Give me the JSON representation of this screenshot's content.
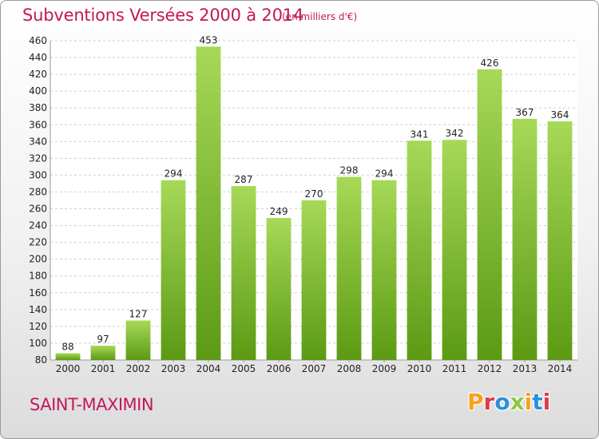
{
  "header": {
    "title": "Subventions Versées 2000 à 2014",
    "subtitle": "(en milliers d'€)"
  },
  "footer": {
    "commune": "SAINT-MAXIMIN",
    "logo_letters": [
      "P",
      "r",
      "o",
      "x",
      "i",
      "t",
      "i"
    ],
    "logo_colors": [
      "#f7a21b",
      "#e2384b",
      "#2f8fd8",
      "#8dc63f",
      "#f7a21b",
      "#2f8fd8",
      "#e2384b"
    ]
  },
  "colors": {
    "bar_light": "#a6d957",
    "bar_dark": "#5c9a14",
    "grid": "#cfcfcf",
    "plot_bg": "#ffffff",
    "title": "#c2185b"
  },
  "chart_data": {
    "type": "bar",
    "categories": [
      "2000",
      "2001",
      "2002",
      "2003",
      "2004",
      "2005",
      "2006",
      "2007",
      "2008",
      "2009",
      "2010",
      "2011",
      "2012",
      "2013",
      "2014"
    ],
    "values": [
      88,
      97,
      127,
      294,
      453,
      287,
      249,
      270,
      298,
      294,
      341,
      342,
      426,
      367,
      364
    ],
    "title": "Subventions Versées 2000 à 2014",
    "subtitle": "(en milliers d'€)",
    "xlabel": "",
    "ylabel": "",
    "ylim": [
      80,
      460
    ],
    "yticks": [
      80,
      100,
      120,
      140,
      160,
      180,
      200,
      220,
      240,
      260,
      280,
      300,
      320,
      340,
      360,
      380,
      400,
      420,
      440,
      460
    ],
    "grid": true,
    "legend": "none"
  }
}
